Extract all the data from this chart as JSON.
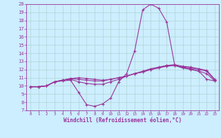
{
  "xlabel": "Windchill (Refroidissement éolien,°C)",
  "bg_color": "#cceeff",
  "line_color": "#993399",
  "xlim": [
    -0.5,
    23.5
  ],
  "ylim": [
    7,
    20
  ],
  "xticks": [
    0,
    1,
    2,
    3,
    4,
    5,
    6,
    7,
    8,
    9,
    10,
    11,
    12,
    13,
    14,
    15,
    16,
    17,
    18,
    19,
    20,
    21,
    22,
    23
  ],
  "yticks": [
    7,
    8,
    9,
    10,
    11,
    12,
    13,
    14,
    15,
    16,
    17,
    18,
    19,
    20
  ],
  "series": {
    "line1": [
      9.9,
      9.9,
      10.0,
      10.5,
      10.6,
      10.7,
      9.2,
      7.7,
      7.5,
      7.8,
      8.5,
      10.5,
      11.5,
      14.3,
      19.3,
      20.0,
      19.5,
      17.8,
      12.5,
      12.2,
      12.1,
      11.8,
      10.8,
      10.6
    ],
    "line2": [
      9.9,
      9.9,
      10.0,
      10.5,
      10.7,
      10.8,
      10.5,
      10.3,
      10.2,
      10.2,
      10.5,
      10.8,
      11.2,
      11.5,
      11.8,
      12.1,
      12.3,
      12.5,
      12.5,
      12.2,
      12.0,
      11.8,
      11.5,
      10.6
    ],
    "line3": [
      9.9,
      9.9,
      10.0,
      10.5,
      10.7,
      10.9,
      10.8,
      10.7,
      10.6,
      10.6,
      10.8,
      11.0,
      11.2,
      11.5,
      11.7,
      12.0,
      12.2,
      12.4,
      12.5,
      12.3,
      12.2,
      12.0,
      11.8,
      10.7
    ],
    "line4": [
      9.9,
      9.9,
      10.0,
      10.5,
      10.7,
      10.9,
      11.0,
      10.9,
      10.8,
      10.7,
      10.8,
      11.0,
      11.2,
      11.5,
      11.7,
      12.0,
      12.2,
      12.5,
      12.6,
      12.4,
      12.3,
      12.1,
      11.9,
      10.8
    ]
  },
  "grid_color": "#aacccc",
  "xlabel_fontsize": 5.5,
  "tick_fontsize": 5.0,
  "tick_fontsize_x": 4.2,
  "linewidth": 0.8,
  "markersize": 3.5
}
